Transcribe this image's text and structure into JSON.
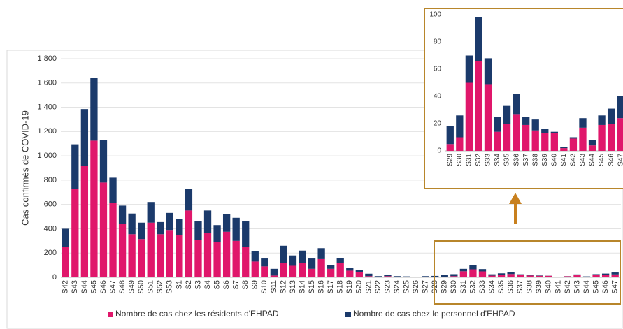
{
  "chart_data": [
    {
      "type": "bar",
      "stacked": true,
      "ylabel": "Cas confirmés de COVID-19",
      "categories": [
        "S42",
        "S43",
        "S44",
        "S45",
        "S46",
        "S47",
        "S48",
        "S49",
        "S50",
        "S51",
        "S52",
        "S53",
        "S1",
        "S2",
        "S3",
        "S4",
        "S5",
        "S6",
        "S7",
        "S8",
        "S9",
        "S10",
        "S11",
        "S12",
        "S13",
        "S14",
        "S15",
        "S16",
        "S17",
        "S18",
        "S19",
        "S20",
        "S21",
        "S22",
        "S23",
        "S24",
        "S25",
        "S26",
        "S27",
        "S28",
        "S29",
        "S30",
        "S31",
        "S32",
        "S33",
        "S34",
        "S35",
        "S36",
        "S37",
        "S38",
        "S39",
        "S40",
        "S41",
        "S42",
        "S43",
        "S44",
        "S45",
        "S46",
        "S47"
      ],
      "series": [
        {
          "name": "Nombre de cas chez les résidents d'EHPAD",
          "color": "#e0176b",
          "values": [
            250,
            730,
            915,
            1125,
            780,
            615,
            440,
            355,
            315,
            450,
            355,
            390,
            350,
            550,
            305,
            365,
            290,
            375,
            300,
            250,
            130,
            90,
            15,
            120,
            95,
            115,
            70,
            150,
            70,
            115,
            55,
            45,
            10,
            5,
            10,
            5,
            3,
            1,
            5,
            5,
            5,
            10,
            50,
            66,
            49,
            14,
            20,
            27,
            19,
            15,
            13,
            13,
            2,
            9,
            17,
            4,
            19,
            20,
            24
          ]
        },
        {
          "name": "Nombre de cas chez le personnel d'EHPAD",
          "color": "#1b3a6b",
          "values": [
            150,
            365,
            470,
            515,
            350,
            205,
            150,
            170,
            135,
            170,
            100,
            140,
            130,
            175,
            155,
            185,
            140,
            145,
            190,
            210,
            85,
            65,
            55,
            140,
            85,
            105,
            85,
            90,
            30,
            45,
            20,
            15,
            20,
            5,
            10,
            5,
            5,
            1,
            5,
            7,
            13,
            16,
            20,
            32,
            19,
            11,
            13,
            15,
            6,
            8,
            3,
            1,
            1,
            1,
            7,
            4,
            7,
            11,
            16
          ]
        }
      ],
      "ylim": [
        0,
        1800
      ],
      "yticks": [
        0,
        200,
        400,
        600,
        800,
        {
          "value": 1000,
          "label": "1 000"
        },
        {
          "value": 1200,
          "label": "1 200"
        },
        {
          "value": 1400,
          "label": "1 400"
        },
        {
          "value": 1600,
          "label": "1 600"
        },
        {
          "value": 1800,
          "label": "1 800"
        }
      ],
      "grid": true,
      "legend": "bottom"
    },
    {
      "type": "bar",
      "stacked": true,
      "categories": [
        "S29",
        "S30",
        "S31",
        "S32",
        "S33",
        "S34",
        "S35",
        "S36",
        "S37",
        "S38",
        "S39",
        "S40",
        "S41",
        "S42",
        "S43",
        "S44",
        "S45",
        "S46",
        "S47"
      ],
      "series": [
        {
          "color": "#e0176b",
          "values": [
            5,
            10,
            50,
            66,
            49,
            14,
            20,
            27,
            19,
            15,
            13,
            13,
            2,
            9,
            17,
            4,
            19,
            20,
            24
          ]
        },
        {
          "color": "#1b3a6b",
          "values": [
            13,
            16,
            20,
            32,
            19,
            11,
            13,
            15,
            6,
            8,
            3,
            1,
            1,
            1,
            7,
            4,
            7,
            11,
            16
          ]
        }
      ],
      "ylim": [
        0,
        100
      ],
      "yticks": [
        0,
        20,
        40,
        60,
        80,
        100
      ],
      "grid": false
    }
  ]
}
